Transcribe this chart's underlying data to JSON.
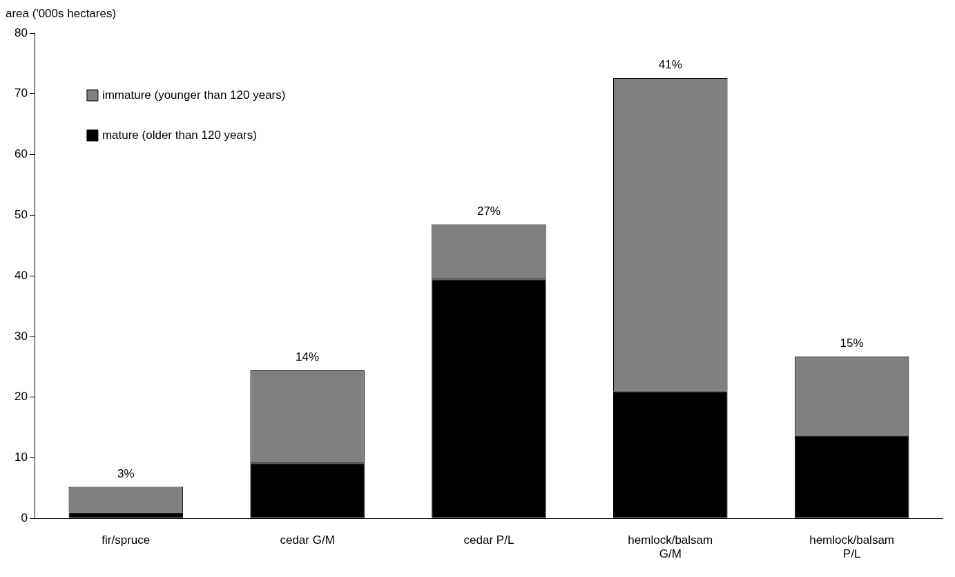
{
  "chart_data": {
    "type": "bar",
    "ylabel": "area ('000s hectares)",
    "categories": [
      "fir/spruce",
      "cedar G/M",
      "cedar P/L",
      "hemlock/balsam\nG/M",
      "hemlock/balsam\nP/L"
    ],
    "series": [
      {
        "name": "mature (older than 120 years)",
        "color": "#000000",
        "values": [
          1.0,
          9.1,
          39.4,
          20.9,
          13.6
        ]
      },
      {
        "name": "immature (younger than 120 years)",
        "color": "#808080",
        "values": [
          4.2,
          15.3,
          9.1,
          51.7,
          13.1
        ]
      }
    ],
    "stacked": true,
    "annotations": [
      {
        "text": "3%",
        "x": "fir/spruce",
        "y": 5.2
      },
      {
        "text": "14%",
        "x": "cedar G/M",
        "y": 24.4
      },
      {
        "text": "27%",
        "x": "cedar P/L",
        "y": 48.5
      },
      {
        "text": "41%",
        "x": "hemlock/balsam\nG/M",
        "y": 72.6
      },
      {
        "text": "15%",
        "x": "hemlock/balsam\nP/L",
        "y": 26.7
      }
    ],
    "ylim": [
      0,
      80
    ],
    "yticks": [
      0,
      10,
      20,
      30,
      40,
      50,
      60,
      70,
      80
    ],
    "legend": "top left"
  }
}
